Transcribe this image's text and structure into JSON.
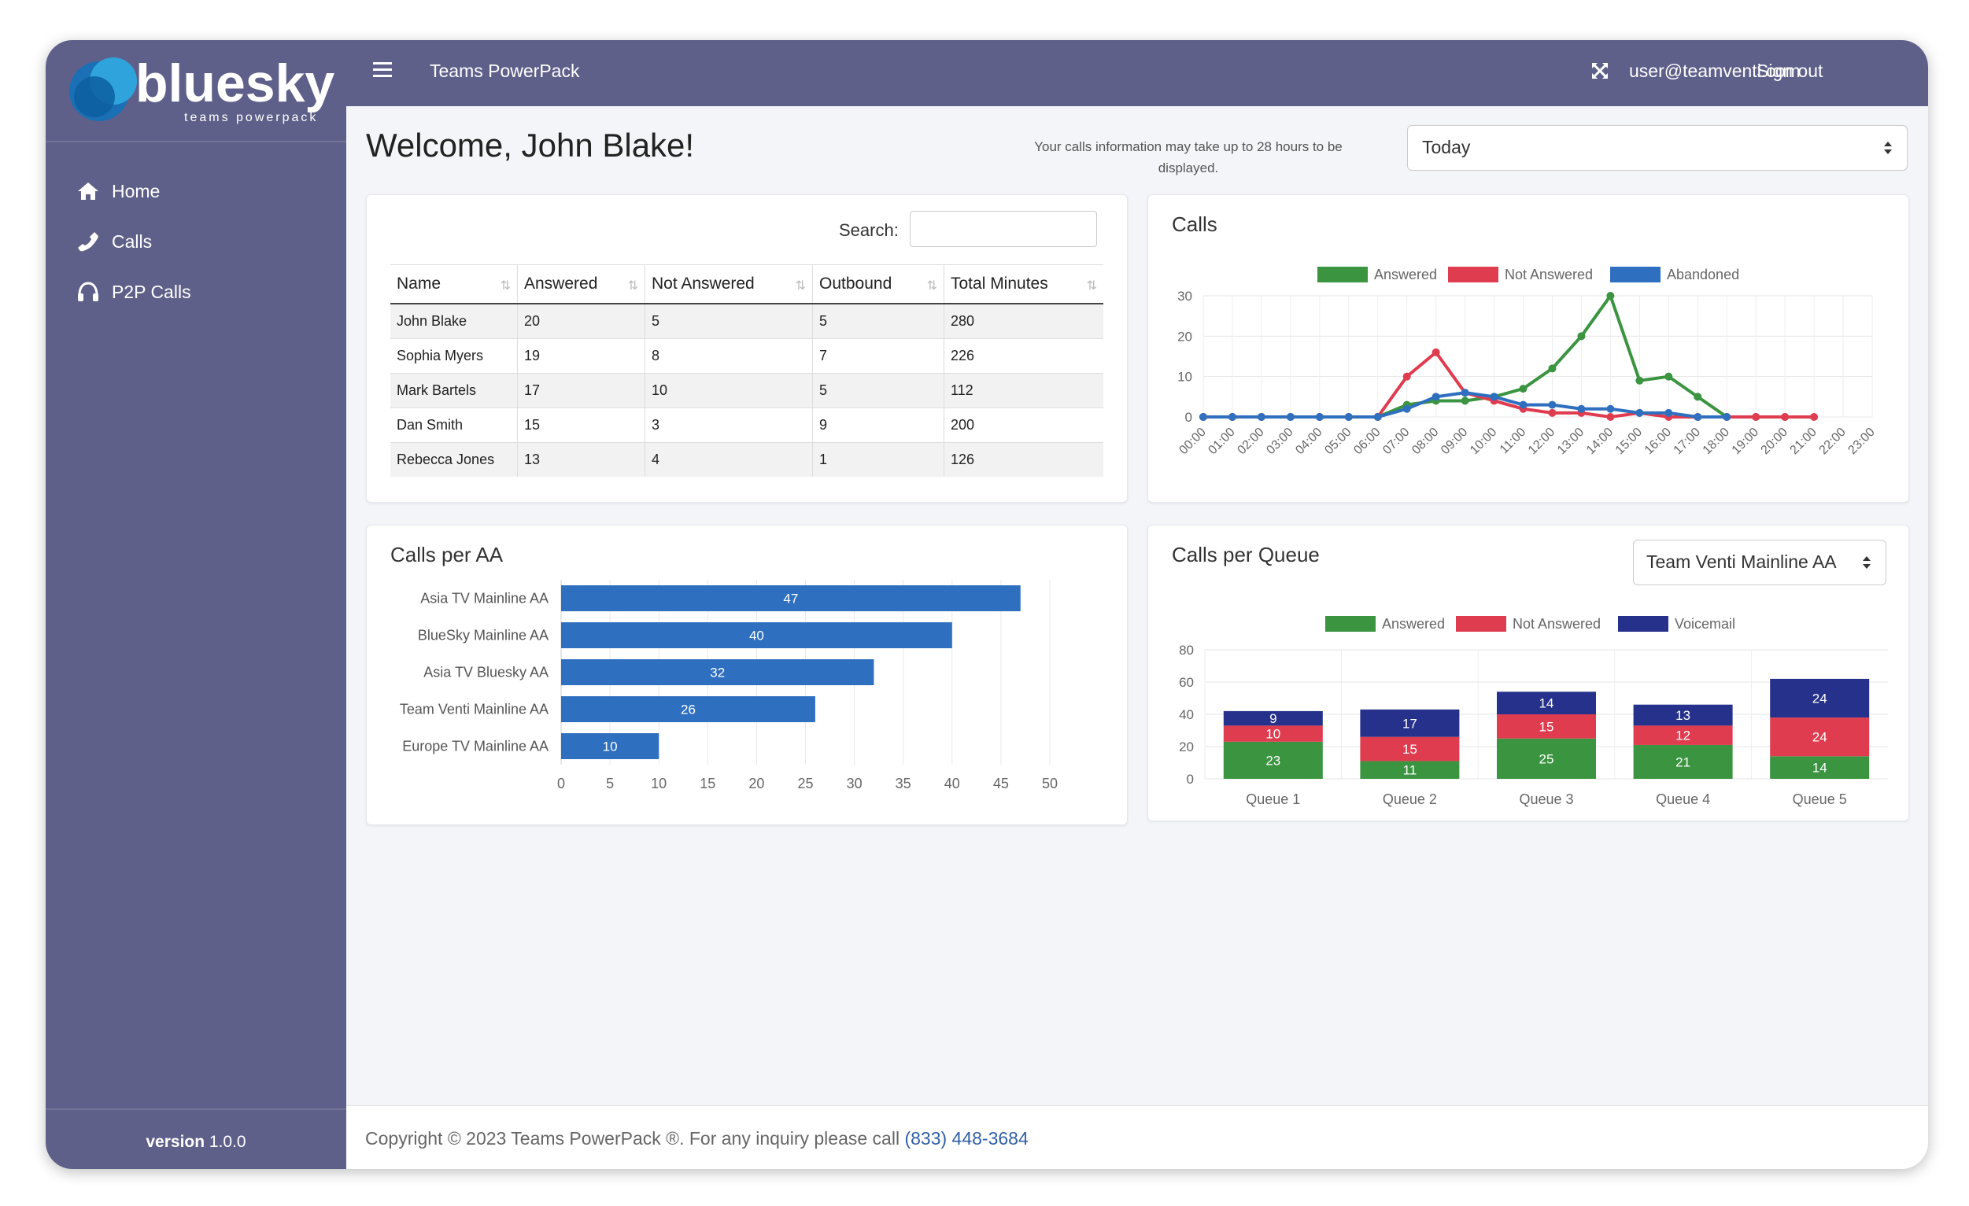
{
  "brand": {
    "name": "bluesky",
    "tagline": "teams powerpack"
  },
  "sidebar": {
    "items": [
      {
        "label": "Home",
        "icon": "home-icon"
      },
      {
        "label": "Calls",
        "icon": "phone-icon"
      },
      {
        "label": "P2P Calls",
        "icon": "headset-icon"
      }
    ],
    "version_label": "version",
    "version_number": "1.0.0"
  },
  "topbar": {
    "app_title": "Teams PowerPack",
    "user": "user@teamventi.com",
    "signout": "Sign out"
  },
  "main": {
    "welcome": "Welcome, John Blake!",
    "notice": "Your calls information may take up to 28 hours to be displayed.",
    "period": "Today"
  },
  "table": {
    "search_label": "Search:",
    "columns": [
      "Name",
      "Answered",
      "Not Answered",
      "Outbound",
      "Total Minutes"
    ],
    "rows": [
      [
        "John Blake",
        "20",
        "5",
        "5",
        "280"
      ],
      [
        "Sophia Myers",
        "19",
        "8",
        "7",
        "226"
      ],
      [
        "Mark Bartels",
        "17",
        "10",
        "5",
        "112"
      ],
      [
        "Dan Smith",
        "15",
        "3",
        "9",
        "200"
      ],
      [
        "Rebecca Jones",
        "13",
        "4",
        "1",
        "126"
      ]
    ]
  },
  "cards": {
    "calls_title": "Calls",
    "aa_title": "Calls per AA",
    "queue_title": "Calls per Queue",
    "queue_select": "Team Venti Mainline AA"
  },
  "footer": {
    "copyright": "Copyright © 2023 Teams PowerPack ®. For any inquiry please call ",
    "phone": "(833) 448-3684"
  },
  "chart_data": [
    {
      "type": "line",
      "title": "Calls",
      "x": [
        "00:00",
        "01:00",
        "02:00",
        "03:00",
        "04:00",
        "05:00",
        "06:00",
        "07:00",
        "08:00",
        "09:00",
        "10:00",
        "11:00",
        "12:00",
        "13:00",
        "14:00",
        "15:00",
        "16:00",
        "17:00",
        "18:00",
        "19:00",
        "20:00",
        "21:00",
        "22:00",
        "23:00"
      ],
      "yticks": [
        0,
        10,
        20,
        30
      ],
      "ylim": [
        0,
        30
      ],
      "legend": "top",
      "series": [
        {
          "name": "Answered",
          "color": "#3a9440",
          "values": [
            0,
            0,
            0,
            0,
            0,
            0,
            0,
            3,
            4,
            4,
            5,
            7,
            12,
            20,
            30,
            9,
            10,
            5,
            0,
            0,
            0,
            null,
            null,
            null
          ]
        },
        {
          "name": "Not Answered",
          "color": "#e03c4f",
          "values": [
            0,
            0,
            0,
            0,
            0,
            0,
            0,
            10,
            16,
            6,
            4,
            2,
            1,
            1,
            0,
            1,
            0,
            0,
            0,
            0,
            0,
            0,
            null,
            null
          ]
        },
        {
          "name": "Abandoned",
          "color": "#2f6fbf",
          "values": [
            0,
            0,
            0,
            0,
            0,
            0,
            0,
            2,
            5,
            6,
            5,
            3,
            3,
            2,
            2,
            1,
            1,
            0,
            0,
            null,
            null,
            null,
            null,
            null
          ]
        }
      ]
    },
    {
      "type": "bar",
      "orientation": "horizontal",
      "title": "Calls per AA",
      "categories": [
        "Asia TV Mainline AA",
        "BlueSky Mainline AA",
        "Asia TV Bluesky AA",
        "Team Venti Mainline AA",
        "Europe TV Mainline AA"
      ],
      "values": [
        47,
        40,
        32,
        26,
        10
      ],
      "xticks": [
        0,
        5,
        10,
        15,
        20,
        25,
        30,
        35,
        40,
        45,
        50
      ],
      "xlim": [
        0,
        50
      ],
      "color": "#2f6fbf"
    },
    {
      "type": "bar",
      "stacked": true,
      "title": "Calls per Queue",
      "categories": [
        "Queue 1",
        "Queue 2",
        "Queue 3",
        "Queue 4",
        "Queue 5"
      ],
      "yticks": [
        0,
        20,
        40,
        60,
        80
      ],
      "ylim": [
        0,
        80
      ],
      "legend": "top",
      "series": [
        {
          "name": "Answered",
          "color": "#3a9440",
          "values": [
            23,
            11,
            25,
            21,
            14
          ]
        },
        {
          "name": "Not Answered",
          "color": "#e03c4f",
          "values": [
            10,
            15,
            15,
            12,
            24
          ]
        },
        {
          "name": "Voicemail",
          "color": "#25318a",
          "values": [
            9,
            17,
            14,
            13,
            24
          ]
        }
      ]
    }
  ]
}
